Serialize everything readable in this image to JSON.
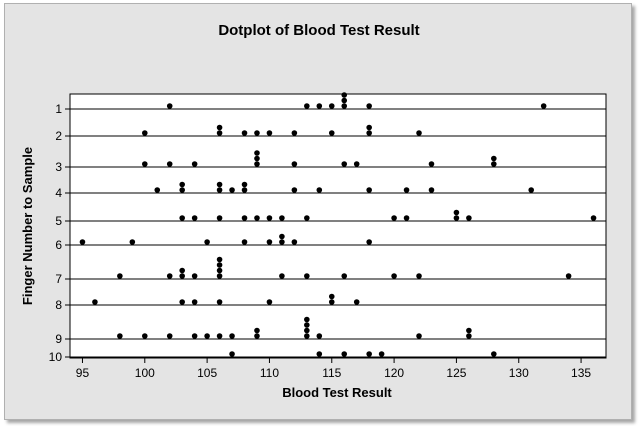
{
  "chart_data": {
    "type": "scatter",
    "title": "Dotplot of Blood Test Result",
    "xlabel": "Blood Test Result",
    "ylabel": "Finger Number to Sample",
    "xlim": [
      94,
      137
    ],
    "x_ticks": [
      95,
      100,
      105,
      110,
      115,
      120,
      125,
      130,
      135
    ],
    "rows": [
      {
        "label": "1",
        "values": [
          102,
          113,
          114,
          115,
          116,
          116,
          116,
          118,
          132
        ]
      },
      {
        "label": "2",
        "values": [
          100,
          106,
          106,
          108,
          109,
          110,
          112,
          115,
          118,
          118,
          122
        ]
      },
      {
        "label": "3",
        "values": [
          100,
          102,
          104,
          109,
          109,
          109,
          112,
          116,
          117,
          123,
          128,
          128
        ]
      },
      {
        "label": "4",
        "values": [
          101,
          103,
          103,
          106,
          106,
          107,
          108,
          108,
          112,
          114,
          118,
          121,
          123,
          131
        ]
      },
      {
        "label": "5",
        "values": [
          103,
          104,
          106,
          108,
          109,
          110,
          111,
          113,
          120,
          121,
          125,
          125,
          126,
          136
        ]
      },
      {
        "label": "6",
        "values": [
          95,
          99,
          105,
          108,
          110,
          111,
          111,
          112,
          118
        ]
      },
      {
        "label": "7",
        "values": [
          98,
          102,
          103,
          103,
          104,
          106,
          106,
          106,
          106,
          111,
          113,
          116,
          120,
          122,
          134
        ]
      },
      {
        "label": "8",
        "values": [
          96,
          103,
          104,
          106,
          110,
          115,
          115,
          117
        ]
      },
      {
        "label": "9",
        "values": [
          98,
          100,
          102,
          104,
          105,
          106,
          107,
          109,
          109,
          113,
          113,
          113,
          113,
          114,
          122,
          126,
          126
        ]
      },
      {
        "label": "10",
        "values": [
          107,
          114,
          116,
          118,
          119,
          128
        ]
      }
    ],
    "grid": "horizontal",
    "colors": {
      "dots": "#000000",
      "plot_background": "#ffffff",
      "frame_background": "#e4e4e4"
    }
  }
}
